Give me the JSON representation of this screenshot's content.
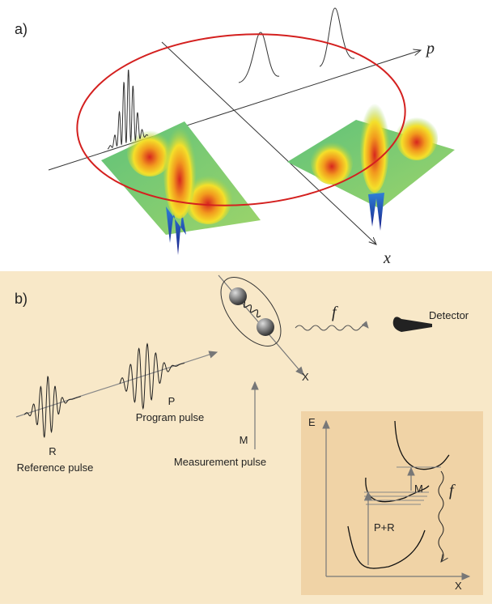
{
  "panel_a": {
    "label": "a)",
    "axis_p": "p",
    "axis_x": "x"
  },
  "panel_b": {
    "label": "b)",
    "frequency": "f",
    "detector": "Detector",
    "molecule_axis": "X",
    "reference": {
      "symbol": "R",
      "label": "Reference pulse"
    },
    "program": {
      "symbol": "P",
      "label": "Program pulse"
    },
    "measurement": {
      "symbol": "M",
      "label": "Measurement pulse"
    },
    "inset": {
      "y_axis": "E",
      "x_axis": "X",
      "measurement": "M",
      "pump": "P+R",
      "emission": "f"
    }
  }
}
